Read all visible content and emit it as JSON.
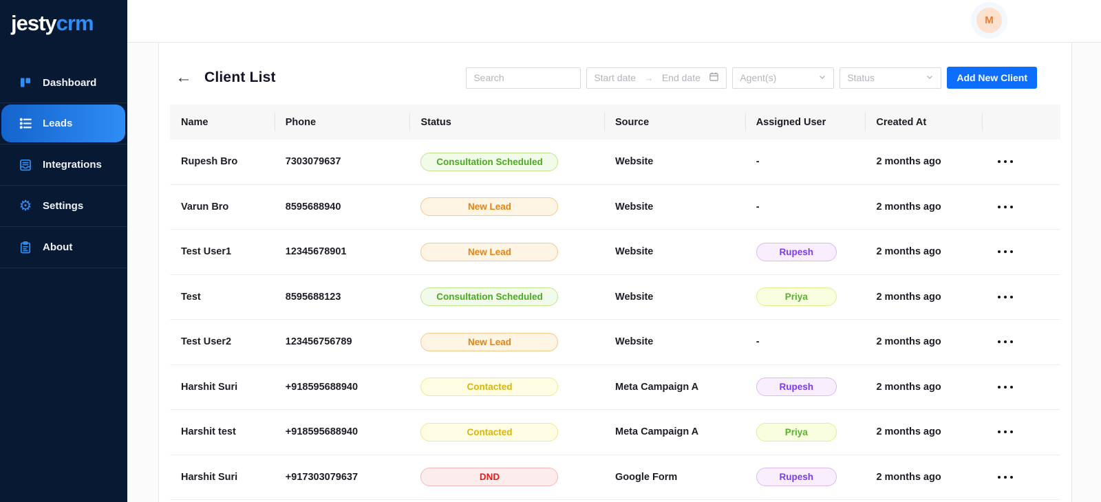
{
  "brand": {
    "name_primary": "jesty",
    "name_secondary": "crm"
  },
  "colors": {
    "sidebar_bg": "#081a33",
    "accent_blue": "#2f8df5",
    "button_blue": "#0d6efd",
    "avatar_bg": "#fce2ce",
    "avatar_text": "#e87b2f"
  },
  "sidebar": {
    "items": [
      {
        "label": "Dashboard",
        "icon": "dashboard-icon",
        "active": false
      },
      {
        "label": "Leads",
        "icon": "leads-icon",
        "active": true
      },
      {
        "label": "Integrations",
        "icon": "integrations-icon",
        "active": false
      },
      {
        "label": "Settings",
        "icon": "settings-icon",
        "active": false
      },
      {
        "label": "About",
        "icon": "about-icon",
        "active": false
      }
    ]
  },
  "topbar": {
    "avatar_initial": "M"
  },
  "page": {
    "title": "Client List",
    "back_arrow": "←"
  },
  "filters": {
    "search_placeholder": "Search",
    "start_date_placeholder": "Start date",
    "end_date_placeholder": "End date",
    "date_arrow": "→",
    "agents_placeholder": "Agent(s)",
    "status_placeholder": "Status",
    "add_button_label": "Add New Client"
  },
  "table": {
    "columns": [
      "Name",
      "Phone",
      "Status",
      "Source",
      "Assigned User",
      "Created At",
      ""
    ],
    "rows": [
      {
        "name": "Rupesh Bro",
        "phone": "7303079637",
        "status": "Consultation Scheduled",
        "source": "Website",
        "assigned": "-",
        "created": "2 months ago"
      },
      {
        "name": "Varun Bro",
        "phone": "8595688940",
        "status": "New Lead",
        "source": "Website",
        "assigned": "-",
        "created": "2 months ago"
      },
      {
        "name": "Test User1",
        "phone": "12345678901",
        "status": "New Lead",
        "source": "Website",
        "assigned": "Rupesh",
        "created": "2 months ago"
      },
      {
        "name": "Test",
        "phone": "8595688123",
        "status": "Consultation Scheduled",
        "source": "Website",
        "assigned": "Priya",
        "created": "2 months ago"
      },
      {
        "name": "Test User2",
        "phone": "123456756789",
        "status": "New Lead",
        "source": "Website",
        "assigned": "-",
        "created": "2 months ago"
      },
      {
        "name": "Harshit Suri",
        "phone": "+918595688940",
        "status": "Contacted",
        "source": "Meta Campaign A",
        "assigned": "Rupesh",
        "created": "2 months ago"
      },
      {
        "name": "Harshit test",
        "phone": "+918595688940",
        "status": "Contacted",
        "source": "Meta Campaign A",
        "assigned": "Priya",
        "created": "2 months ago"
      },
      {
        "name": "Harshit Suri",
        "phone": "+917303079637",
        "status": "DND",
        "source": "Google Form",
        "assigned": "Rupesh",
        "created": "2 months ago"
      }
    ]
  },
  "status_colors": {
    "Consultation Scheduled": {
      "bg": "#f2fbea",
      "border": "#bfe58f",
      "text": "#4aab21"
    },
    "New Lead": {
      "bg": "#fdf4e3",
      "border": "#f3c98b",
      "text": "#e28413"
    },
    "Contacted": {
      "bg": "#fefce3",
      "border": "#efe98e",
      "text": "#d8b411"
    },
    "DND": {
      "bg": "#fdecec",
      "border": "#f3b9b9",
      "text": "#e11d1d"
    }
  },
  "agent_colors": {
    "Rupesh": {
      "bg": "#f8eefe",
      "border": "#dcb8f2",
      "text": "#7c3aed"
    },
    "Priya": {
      "bg": "#fafee0",
      "border": "#e0ef8e",
      "text": "#56b32a"
    }
  }
}
